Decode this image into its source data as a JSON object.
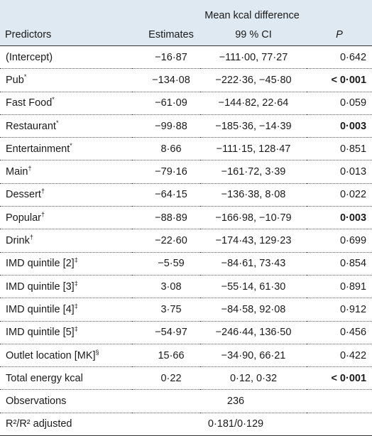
{
  "header": {
    "group_label": "Mean kcal difference",
    "columns": [
      "Predictors",
      "Estimates",
      "99 % CI",
      "P"
    ]
  },
  "rows": [
    {
      "predictor": "(Intercept)",
      "sup": "",
      "estimate": "−16·87",
      "ci": "−111·00, 77·27",
      "p": "0·642",
      "bold": false
    },
    {
      "predictor": "Pub",
      "sup": "*",
      "estimate": "−134·08",
      "ci": "−222·36, −45·80",
      "p": "< 0·001",
      "bold": true
    },
    {
      "predictor": "Fast Food",
      "sup": "*",
      "estimate": "−61·09",
      "ci": "−144·82, 22·64",
      "p": "0·059",
      "bold": false
    },
    {
      "predictor": "Restaurant",
      "sup": "*",
      "estimate": "−99·88",
      "ci": "−185·36, −14·39",
      "p": "0·003",
      "bold": true
    },
    {
      "predictor": "Entertainment",
      "sup": "*",
      "estimate": "8·66",
      "ci": "−111·15, 128·47",
      "p": "0·851",
      "bold": false
    },
    {
      "predictor": "Main",
      "sup": "†",
      "estimate": "−79·16",
      "ci": "−161·72, 3·39",
      "p": "0·013",
      "bold": false
    },
    {
      "predictor": "Dessert",
      "sup": "†",
      "estimate": "−64·15",
      "ci": "−136·38, 8·08",
      "p": "0·022",
      "bold": false
    },
    {
      "predictor": "Popular",
      "sup": "†",
      "estimate": "−88·89",
      "ci": "−166·98, −10·79",
      "p": "0·003",
      "bold": true
    },
    {
      "predictor": "Drink",
      "sup": "†",
      "estimate": "−22·60",
      "ci": "−174·43, 129·23",
      "p": "0·699",
      "bold": false
    },
    {
      "predictor": "IMD quintile [2]",
      "sup": "‡",
      "estimate": "−5·59",
      "ci": "−84·61, 73·43",
      "p": "0·854",
      "bold": false
    },
    {
      "predictor": "IMD quintile [3]",
      "sup": "‡",
      "estimate": "3·08",
      "ci": "−55·14, 61·30",
      "p": "0·891",
      "bold": false
    },
    {
      "predictor": "IMD quintile [4]",
      "sup": "‡",
      "estimate": "3·75",
      "ci": "−84·58, 92·08",
      "p": "0·912",
      "bold": false
    },
    {
      "predictor": "IMD quintile [5]",
      "sup": "‡",
      "estimate": "−54·97",
      "ci": "−246·44, 136·50",
      "p": "0·456",
      "bold": false
    },
    {
      "predictor": "Outlet location [MK]",
      "sup": "§",
      "estimate": "15·66",
      "ci": "−34·90, 66·21",
      "p": "0·422",
      "bold": false
    },
    {
      "predictor": "Total energy kcal",
      "sup": "",
      "estimate": "0·22",
      "ci": "0·12, 0·32",
      "p": "< 0·001",
      "bold": true
    }
  ],
  "summary": [
    {
      "label": "Observations",
      "value": "236"
    },
    {
      "label": "R²/R² adjusted",
      "value": "0·181/0·129"
    }
  ]
}
